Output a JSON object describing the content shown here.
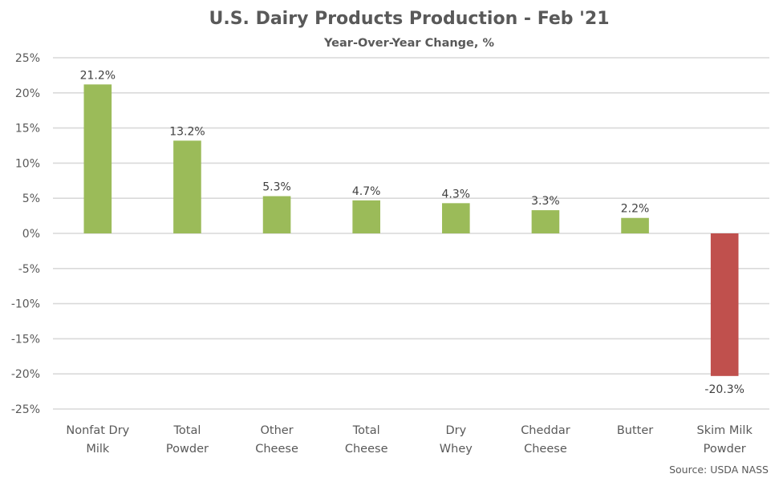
{
  "chart_data": {
    "type": "bar",
    "title": "U.S. Dairy Products Production - Feb '21",
    "subtitle": "Year-Over-Year Change, %",
    "xlabel": "",
    "ylabel": "",
    "categories": [
      [
        "Nonfat Dry",
        "Milk"
      ],
      [
        "Total",
        "Powder"
      ],
      [
        "Other",
        "Cheese"
      ],
      [
        "Total",
        "Cheese"
      ],
      [
        "Dry",
        "Whey"
      ],
      [
        "Cheddar",
        "Cheese"
      ],
      [
        "Butter"
      ],
      [
        "Skim Milk",
        "Powder"
      ]
    ],
    "values": [
      21.2,
      13.2,
      5.3,
      4.7,
      4.3,
      3.3,
      2.2,
      -20.3
    ],
    "data_labels": [
      "21.2%",
      "13.2%",
      "5.3%",
      "4.7%",
      "4.3%",
      "3.3%",
      "2.2%",
      "-20.3%"
    ],
    "ylim": [
      -25,
      25
    ],
    "yticks": [
      25,
      20,
      15,
      10,
      5,
      0,
      -5,
      -10,
      -15,
      -20,
      -25
    ],
    "ytick_labels": [
      "25%",
      "20%",
      "15%",
      "10%",
      "5%",
      "0%",
      "-5%",
      "-10%",
      "-15%",
      "-20%",
      "-25%"
    ],
    "grid": true,
    "legend": "none",
    "colors": {
      "positive": "#9bbb59",
      "negative": "#c0504d"
    },
    "source": "Source: USDA NASS"
  }
}
